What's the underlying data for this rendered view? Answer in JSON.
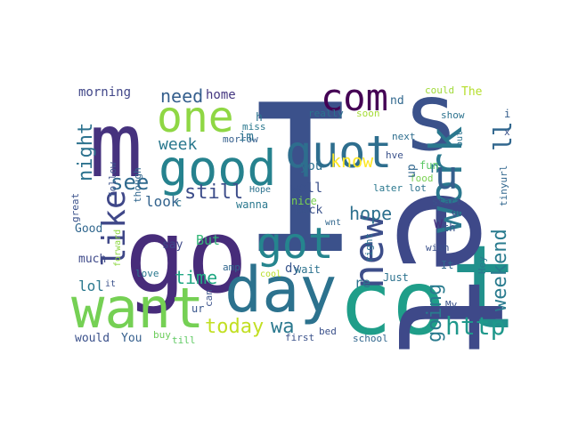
{
  "words": [
    {
      "text": "I",
      "color": "#3b518b"
    },
    {
      "text": "go",
      "color": "#472c7a"
    },
    {
      "text": "m",
      "color": "#46327e"
    },
    {
      "text": "s",
      "color": "#3b528b"
    },
    {
      "text": "t",
      "color": "#21918c"
    },
    {
      "text": "co",
      "color": "#1f9e89"
    },
    {
      "text": "et",
      "color": "#3e4989"
    },
    {
      "text": "want",
      "color": "#75d054"
    },
    {
      "text": "day",
      "color": "#2c728e"
    },
    {
      "text": "good",
      "color": "#26828e"
    },
    {
      "text": "work",
      "color": "#2a788e"
    },
    {
      "text": "one",
      "color": "#8fd744"
    },
    {
      "text": "quot",
      "color": "#2e6e8e"
    },
    {
      "text": "got",
      "color": "#25858e"
    },
    {
      "text": "new",
      "color": "#3d4e8a"
    },
    {
      "text": "com",
      "color": "#440154"
    },
    {
      "text": "like",
      "color": "#3f4788"
    },
    {
      "text": "u",
      "color": "#355f8d"
    },
    {
      "text": "ll",
      "color": "#31678e"
    },
    {
      "text": "http",
      "color": "#1f988b"
    },
    {
      "text": "going",
      "color": "#297b8e"
    },
    {
      "text": "weekend",
      "color": "#297b8e"
    },
    {
      "text": "hope",
      "color": "#2d708e"
    },
    {
      "text": "today",
      "color": "#c2df23"
    },
    {
      "text": "wa",
      "color": "#2a788e"
    },
    {
      "text": "night",
      "color": "#2c728e"
    },
    {
      "text": "see",
      "color": "#306a8e"
    },
    {
      "text": "still",
      "color": "#3d4d8a"
    },
    {
      "text": "time",
      "color": "#22a884"
    },
    {
      "text": "need",
      "color": "#355f8d"
    },
    {
      "text": "week",
      "color": "#2a788e"
    },
    {
      "text": "know",
      "color": "#fde725"
    },
    {
      "text": "look",
      "color": "#33638d"
    },
    {
      "text": "lol",
      "color": "#2a788e"
    },
    {
      "text": "But",
      "color": "#35b779"
    },
    {
      "text": "morning",
      "color": "#404688"
    },
    {
      "text": "home",
      "color": "#453781"
    },
    {
      "text": "you",
      "color": "#2d708e"
    },
    {
      "text": "well",
      "color": "#3b518b"
    },
    {
      "text": "dy",
      "color": "#39568c"
    },
    {
      "text": "re",
      "color": "#2c728e"
    },
    {
      "text": "n",
      "color": "#2a788e"
    },
    {
      "text": "w",
      "color": "#46327e"
    },
    {
      "text": "Good",
      "color": "#31678e"
    },
    {
      "text": "much",
      "color": "#3e4989"
    },
    {
      "text": "would",
      "color": "#3b518b"
    },
    {
      "text": "You",
      "color": "#355f8d"
    },
    {
      "text": "The",
      "color": "#b5de2b"
    },
    {
      "text": "nd",
      "color": "#31688e"
    },
    {
      "text": "next",
      "color": "#2e6e8e"
    },
    {
      "text": "hve",
      "color": "#3b528b"
    },
    {
      "text": "fun",
      "color": "#5ac864"
    },
    {
      "text": "show",
      "color": "#2c728e"
    },
    {
      "text": "could",
      "color": "#a0da39"
    },
    {
      "text": "really",
      "color": "#2c728e"
    },
    {
      "text": "soon",
      "color": "#a5db36"
    },
    {
      "text": "miss",
      "color": "#2a788e"
    },
    {
      "text": "morrow",
      "color": "#355f8d"
    },
    {
      "text": "im",
      "color": "#2c728e"
    },
    {
      "text": "h",
      "color": "#2c728e"
    },
    {
      "text": "follow",
      "color": "#3b518b"
    },
    {
      "text": "though",
      "color": "#31678e"
    },
    {
      "text": "great",
      "color": "#3b528b"
    },
    {
      "text": "Hope",
      "color": "#2c728e"
    },
    {
      "text": "nice",
      "color": "#7ad151"
    },
    {
      "text": "back",
      "color": "#3b528b"
    },
    {
      "text": "wnt",
      "color": "#31678e"
    },
    {
      "text": "wanna",
      "color": "#2a788e"
    },
    {
      "text": "c",
      "color": "#2c728e"
    },
    {
      "text": "say",
      "color": "#3e4989"
    },
    {
      "text": "amp",
      "color": "#31678e"
    },
    {
      "text": "love",
      "color": "#2a788e"
    },
    {
      "text": "can",
      "color": "#3b528b"
    },
    {
      "text": "ur",
      "color": "#39568c"
    },
    {
      "text": "it",
      "color": "#3b518b"
    },
    {
      "text": "forward",
      "color": "#8fd744"
    },
    {
      "text": "buy",
      "color": "#6ccd5a"
    },
    {
      "text": "till",
      "color": "#5ec962"
    },
    {
      "text": "first",
      "color": "#3b528b"
    },
    {
      "text": "bed",
      "color": "#3b518b"
    },
    {
      "text": "school",
      "color": "#31678e"
    },
    {
      "text": "wait",
      "color": "#2c728e"
    },
    {
      "text": "right",
      "color": "#2c728e"
    },
    {
      "text": "Just",
      "color": "#2c728e"
    },
    {
      "text": "My",
      "color": "#3b528b"
    },
    {
      "text": "It",
      "color": "#31678e"
    },
    {
      "text": "Hey",
      "color": "#2a788e"
    },
    {
      "text": "wish",
      "color": "#3b518b"
    },
    {
      "text": "th",
      "color": "#3b528b"
    },
    {
      "text": "guy",
      "color": "#3e4989"
    },
    {
      "text": "start",
      "color": "#3b528b"
    },
    {
      "text": "tinyurl",
      "color": "#31678e"
    },
    {
      "text": "lot",
      "color": "#2c728e"
    },
    {
      "text": "food",
      "color": "#7ad151"
    },
    {
      "text": "later",
      "color": "#2a788e"
    },
    {
      "text": "up",
      "color": "#31678e"
    },
    {
      "text": "out",
      "color": "#2c728e"
    },
    {
      "text": "x",
      "color": "#3b528b"
    },
    {
      "text": "i",
      "color": "#355f8d"
    },
    {
      "text": "cool",
      "color": "#b8de29"
    }
  ]
}
